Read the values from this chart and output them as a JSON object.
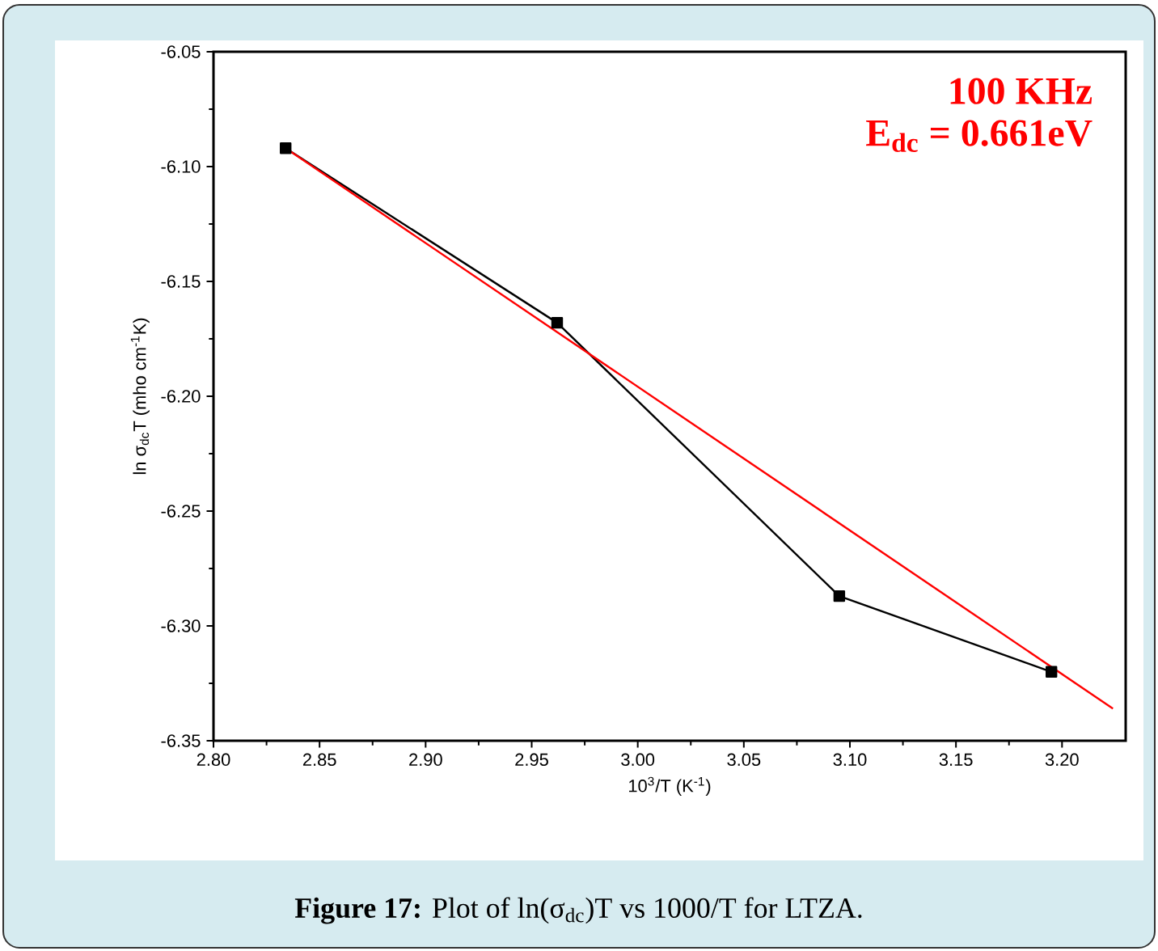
{
  "chart_data": {
    "type": "line",
    "xlabel": "10$^{3}$/T (K$^{-1}$)",
    "ylabel": "ln σ$_{dc}$T (mho cm$^{-1}$K)",
    "annotations": [
      "100 KHz",
      "E$_{dc}$ = 0.661eV",
      "**Figure 17:** Plot of ln(σ$_{dc}$)T vs 1000/T for LTZA."
    ],
    "series": [
      {
        "color": "#000000",
        "marker": "square",
        "line_style": "solid",
        "x": [
          2.834,
          2.962,
          3.095,
          3.195
        ],
        "values": [
          -6.092,
          -6.168,
          -6.287,
          -6.32
        ]
      },
      {
        "color": "#ff0000",
        "marker": "none",
        "line_style": "solid",
        "x": [
          2.834,
          3.224
        ],
        "values": [
          -6.092,
          -6.336
        ]
      }
    ],
    "xlim": [
      2.8,
      3.23
    ],
    "ylim": [
      -6.35,
      -6.05
    ],
    "xticks": [
      {
        "value": 2.8,
        "label": "2.80"
      },
      {
        "value": 2.85,
        "label": "2.85"
      },
      {
        "value": 2.9,
        "label": "2.90"
      },
      {
        "value": 2.95,
        "label": "2.95"
      },
      {
        "value": 3.0,
        "label": "3.00"
      },
      {
        "value": 3.05,
        "label": "3.05"
      },
      {
        "value": 3.1,
        "label": "3.10"
      },
      {
        "value": 3.15,
        "label": "3.15"
      },
      {
        "value": 3.2,
        "label": "3.20"
      }
    ],
    "yticks": [
      {
        "value": -6.35,
        "label": "-6.35"
      },
      {
        "value": -6.3,
        "label": "-6.30"
      },
      {
        "value": -6.25,
        "label": "-6.25"
      },
      {
        "value": -6.2,
        "label": "-6.20"
      },
      {
        "value": -6.15,
        "label": "-6.15"
      },
      {
        "value": -6.1,
        "label": "-6.10"
      },
      {
        "value": -6.05,
        "label": "-6.05"
      }
    ]
  }
}
